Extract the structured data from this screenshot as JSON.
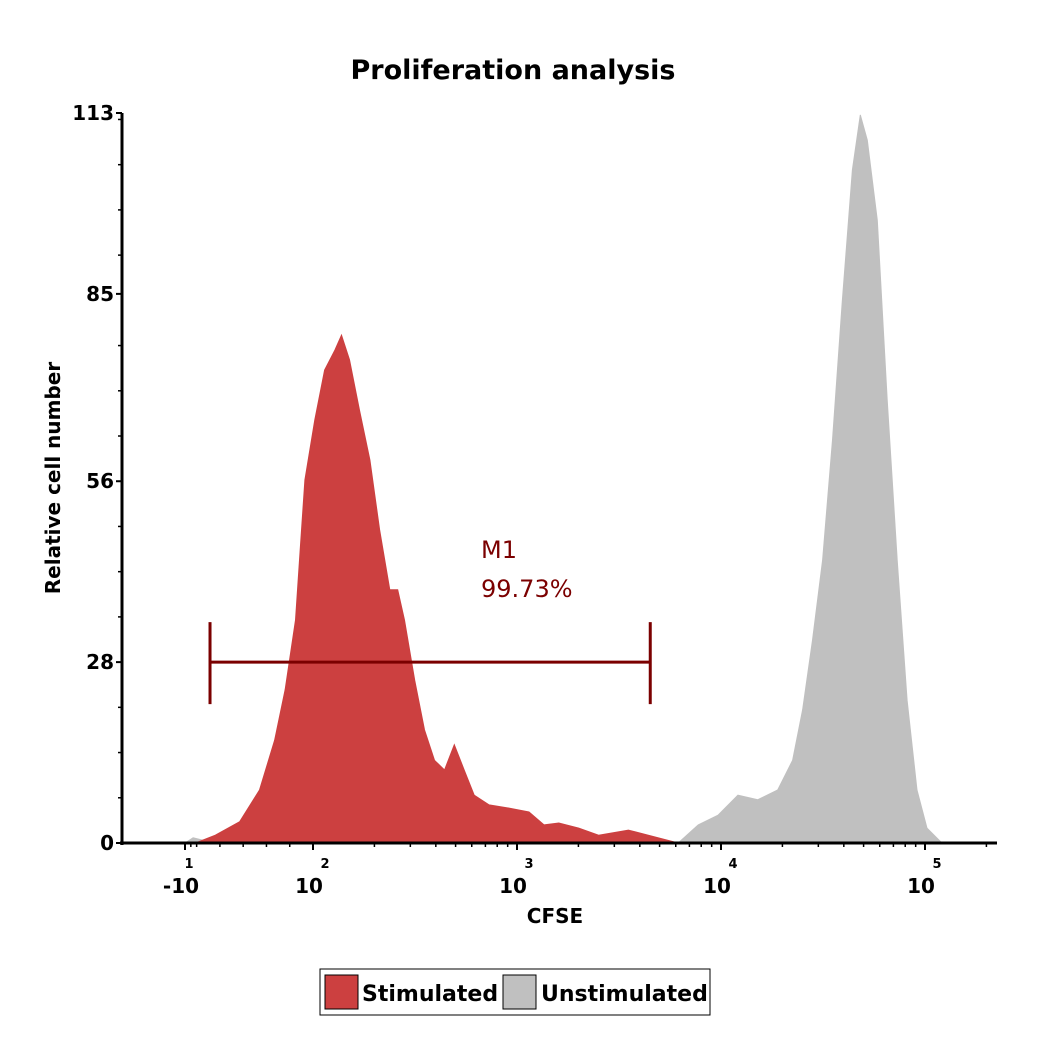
{
  "chart_data": {
    "type": "area",
    "title": "Proliferation analysis",
    "xlabel": "CFSE",
    "ylabel": "Relative cell number",
    "x_scale": "biexponential (log for positive values)",
    "x_ticks": [
      {
        "base": "-10",
        "exp": "1",
        "value": -10
      },
      {
        "base": "10",
        "exp": "2",
        "value": 100
      },
      {
        "base": "10",
        "exp": "3",
        "value": 1000
      },
      {
        "base": "10",
        "exp": "4",
        "value": 10000
      },
      {
        "base": "10",
        "exp": "5",
        "value": 100000
      }
    ],
    "y_ticks": [
      "0",
      "28",
      "56",
      "85",
      "113"
    ],
    "ylim": [
      0,
      113
    ],
    "grid": false,
    "legend_position": "bottom",
    "series": [
      {
        "name": "Stimulated",
        "color": "#cc4040",
        "points": [
          [
            -1,
            0
          ],
          [
            16,
            1.2
          ],
          [
            37,
            3.3
          ],
          [
            54,
            8.2
          ],
          [
            67,
            15.9
          ],
          [
            76,
            23.7
          ],
          [
            85,
            34.5
          ],
          [
            89,
            45.4
          ],
          [
            93,
            56.2
          ],
          [
            102,
            65.5
          ],
          [
            114,
            73.2
          ],
          [
            128,
            76.3
          ],
          [
            138,
            78.6
          ],
          [
            151,
            74.8
          ],
          [
            169,
            67
          ],
          [
            190,
            59.3
          ],
          [
            212,
            48.5
          ],
          [
            238,
            39.2
          ],
          [
            260,
            39.2
          ],
          [
            281,
            34.5
          ],
          [
            315,
            25.2
          ],
          [
            352,
            17.5
          ],
          [
            394,
            12.8
          ],
          [
            441,
            11.3
          ],
          [
            493,
            15.2
          ],
          [
            551,
            11.3
          ],
          [
            617,
            7.4
          ],
          [
            730,
            5.9
          ],
          [
            914,
            5.4
          ],
          [
            1145,
            4.8
          ],
          [
            1356,
            2.8
          ],
          [
            1603,
            3.1
          ],
          [
            2006,
            2.3
          ],
          [
            2512,
            1.2
          ],
          [
            3516,
            2
          ],
          [
            4932,
            0.8
          ],
          [
            6166,
            0
          ]
        ]
      },
      {
        "name": "Unstimulated",
        "color": "#c0c0c0",
        "points": [
          [
            -10,
            0
          ],
          [
            -3,
            0.8
          ],
          [
            6,
            0.4
          ],
          [
            12,
            0
          ],
          [
            6166,
            0
          ],
          [
            7727,
            2.8
          ],
          [
            9664,
            4.3
          ],
          [
            12100,
            7.4
          ],
          [
            15150,
            6.7
          ],
          [
            18970,
            8.2
          ],
          [
            22450,
            12.8
          ],
          [
            25120,
            20.6
          ],
          [
            28100,
            31.4
          ],
          [
            31470,
            43.8
          ],
          [
            35190,
            62.4
          ],
          [
            39380,
            84.1
          ],
          [
            44060,
            104.2
          ],
          [
            48190,
            112.7
          ],
          [
            52140,
            108.8
          ],
          [
            58340,
            96.4
          ],
          [
            65290,
            68.6
          ],
          [
            73040,
            43.8
          ],
          [
            81720,
            22.1
          ],
          [
            91410,
            8.2
          ],
          [
            102300,
            2.3
          ],
          [
            121000,
            0
          ]
        ]
      }
    ],
    "gate": {
      "name": "M1",
      "percent": "99.73%",
      "range": [
        11.5,
        4500
      ],
      "level": 28,
      "color": "#7b0000"
    }
  }
}
